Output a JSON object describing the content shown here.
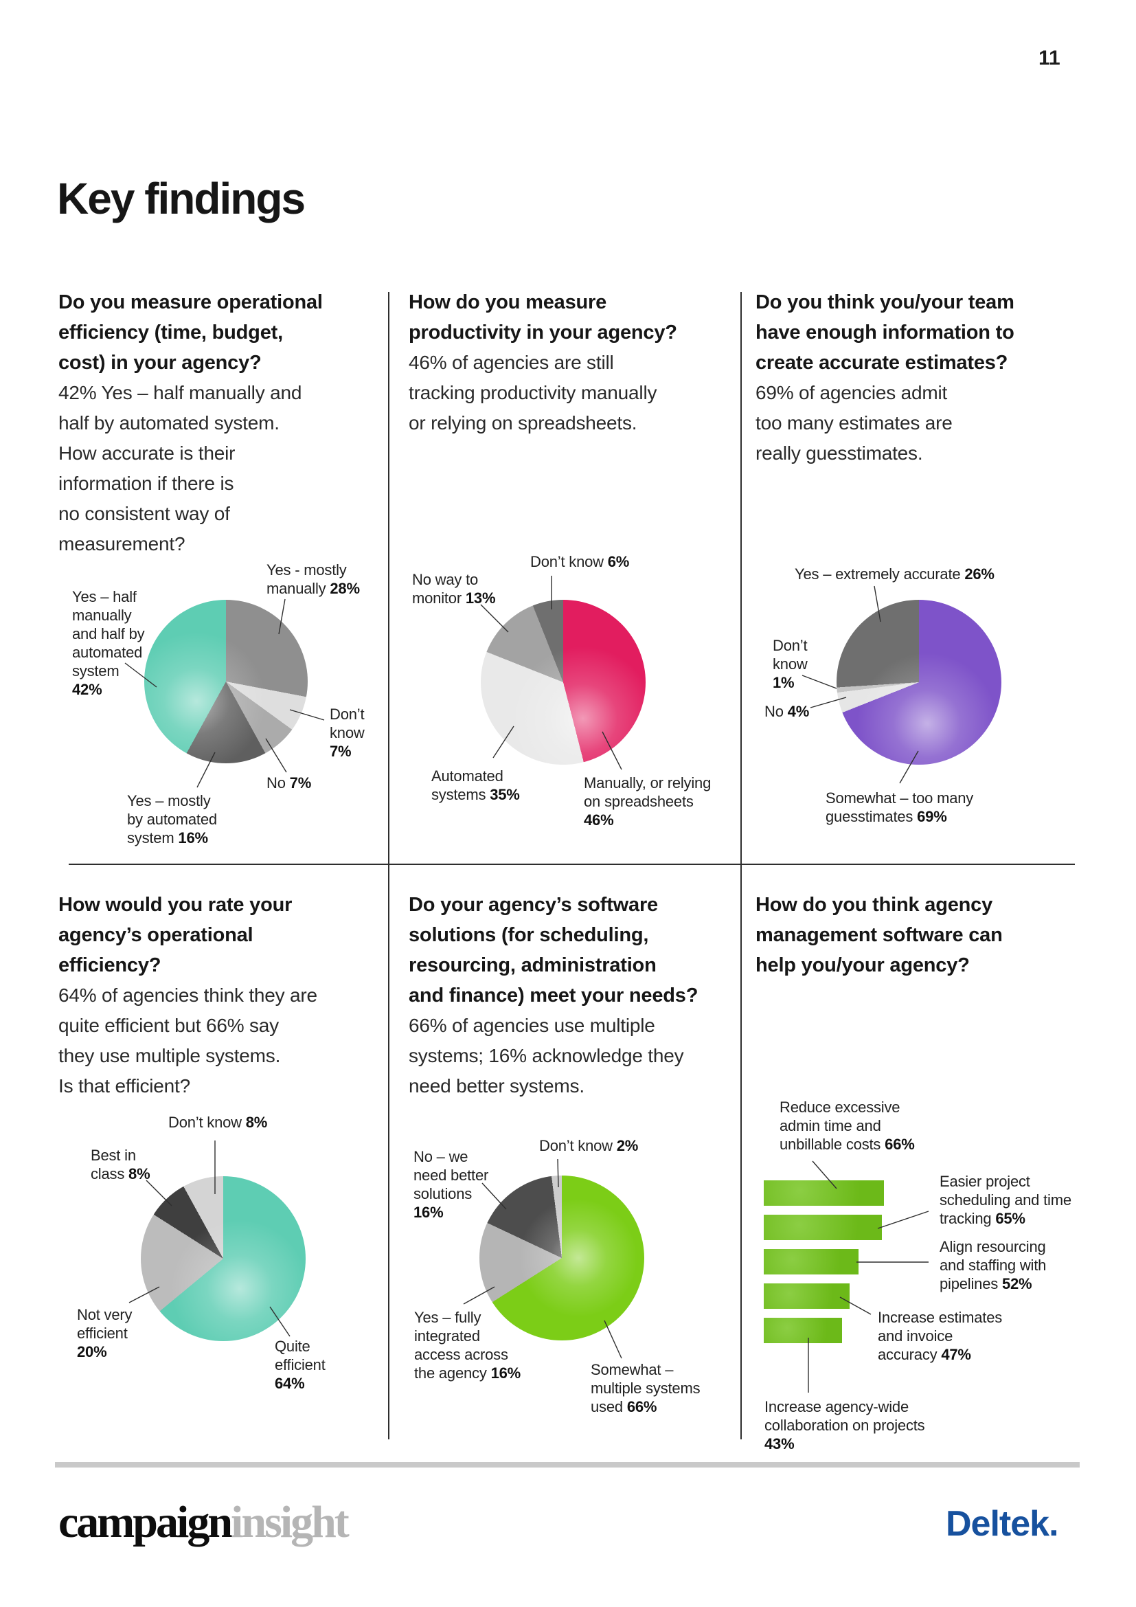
{
  "page": {
    "number": "11",
    "title": "Key findings"
  },
  "sections": [
    {
      "heading": "Do you measure operational\nefficiency (time, budget,\ncost) in your agency?",
      "body": "42% Yes – half manually and\nhalf by automated system.\nHow accurate is their\ninformation if there is\nno consistent way of\nmeasurement?"
    },
    {
      "heading": "How do you measure\nproductivity in your agency?",
      "body": "46% of agencies are still\ntracking productivity manually\nor relying on spreadsheets."
    },
    {
      "heading": "Do you think you/your team\nhave enough information to\ncreate accurate estimates?",
      "body": "69% of agencies admit\ntoo many estimates are\nreally guesstimates."
    },
    {
      "heading": "How would you rate your\nagency’s operational\nefficiency?",
      "body": "64% of agencies think they are\nquite efficient but 66% say\nthey use multiple systems.\nIs that efficient?"
    },
    {
      "heading": "Do your agency’s software\nsolutions (for scheduling,\nresourcing, administration\nand finance) meet your needs?",
      "body": "66% of agencies use multiple\nsystems; 16% acknowledge they\nneed better systems."
    },
    {
      "heading": "How do you think agency\nmanagement software can\nhelp you/your agency?",
      "body": ""
    }
  ],
  "chart_data": [
    {
      "type": "pie",
      "title": "Do you measure operational efficiency (time, budget, cost) in your agency?",
      "slices": [
        {
          "label": "Yes - mostly manually",
          "pct": "28%",
          "value": 28,
          "color": "#8f8f8f"
        },
        {
          "label": "Don’t know",
          "pct": "7%",
          "value": 7,
          "color": "#dedede"
        },
        {
          "label": "No",
          "pct": "7%",
          "value": 7,
          "color": "#ababab"
        },
        {
          "label": "Yes – mostly by automated system",
          "pct": "16%",
          "value": 16,
          "color": "#5f5f5f"
        },
        {
          "label": "Yes – half manually and half by automated system",
          "pct": "42%",
          "value": 42,
          "color": "#5ecdb3"
        }
      ]
    },
    {
      "type": "pie",
      "title": "How do you measure productivity in your agency?",
      "slices": [
        {
          "label": "Manually, or relying on spreadsheets",
          "pct": "46%",
          "value": 46,
          "color": "#e21d5f"
        },
        {
          "label": "Automated systems",
          "pct": "35%",
          "value": 35,
          "color": "#e9e9e9"
        },
        {
          "label": "No way to monitor",
          "pct": "13%",
          "value": 13,
          "color": "#a3a3a3"
        },
        {
          "label": "Don’t know",
          "pct": "6%",
          "value": 6,
          "color": "#6f6f6f"
        }
      ]
    },
    {
      "type": "pie",
      "title": "Do you think you/your team have enough information to create accurate estimates?",
      "slices": [
        {
          "label": "Somewhat – too many guesstimates",
          "pct": "69%",
          "value": 69,
          "color": "#7e53c9"
        },
        {
          "label": "No",
          "pct": "4%",
          "value": 4,
          "color": "#e6e6e6"
        },
        {
          "label": "Don’t know",
          "pct": "1%",
          "value": 1,
          "color": "#c4c4c4"
        },
        {
          "label": "Yes – extremely accurate",
          "pct": "26%",
          "value": 26,
          "color": "#6f6f6f"
        }
      ]
    },
    {
      "type": "pie",
      "title": "How would you rate your agency’s operational efficiency?",
      "slices": [
        {
          "label": "Quite efficient",
          "pct": "64%",
          "value": 64,
          "color": "#5ecdb3"
        },
        {
          "label": "Not very efficient",
          "pct": "20%",
          "value": 20,
          "color": "#bcbcbc"
        },
        {
          "label": "Best in class",
          "pct": "8%",
          "value": 8,
          "color": "#3f3f3f"
        },
        {
          "label": "Don’t know",
          "pct": "8%",
          "value": 8,
          "color": "#d4d4d4"
        }
      ]
    },
    {
      "type": "pie",
      "title": "Do your agency’s software solutions (for scheduling, resourcing, administration and finance) meet your needs?",
      "slices": [
        {
          "label": "Somewhat – multiple systems used",
          "pct": "66%",
          "value": 66,
          "color": "#7ccd17"
        },
        {
          "label": "Yes – fully integrated access across the agency",
          "pct": "16%",
          "value": 16,
          "color": "#b5b5b5"
        },
        {
          "label": "No – we need better solutions",
          "pct": "16%",
          "value": 16,
          "color": "#4d4d4d"
        },
        {
          "label": "Don’t know",
          "pct": "2%",
          "value": 2,
          "color": "#cdcdcd"
        }
      ]
    },
    {
      "type": "bar",
      "title": "How do you think agency management software can help you/your agency?",
      "orientation": "horizontal",
      "color": "#72c31a",
      "xlim": [
        0,
        100
      ],
      "bars": [
        {
          "label": "Reduce excessive admin time and unbillable costs",
          "pct": "66%",
          "value": 66
        },
        {
          "label": "Easier project scheduling and time tracking",
          "pct": "65%",
          "value": 65
        },
        {
          "label": "Align resourcing and staffing with pipelines",
          "pct": "52%",
          "value": 52
        },
        {
          "label": "Increase estimates and invoice accuracy",
          "pct": "47%",
          "value": 47
        },
        {
          "label": "Increase agency-wide collaboration on projects",
          "pct": "43%",
          "value": 43
        }
      ]
    }
  ],
  "footer": {
    "campaign": "campaign",
    "insight": "insight",
    "deltek": "Deltek."
  }
}
